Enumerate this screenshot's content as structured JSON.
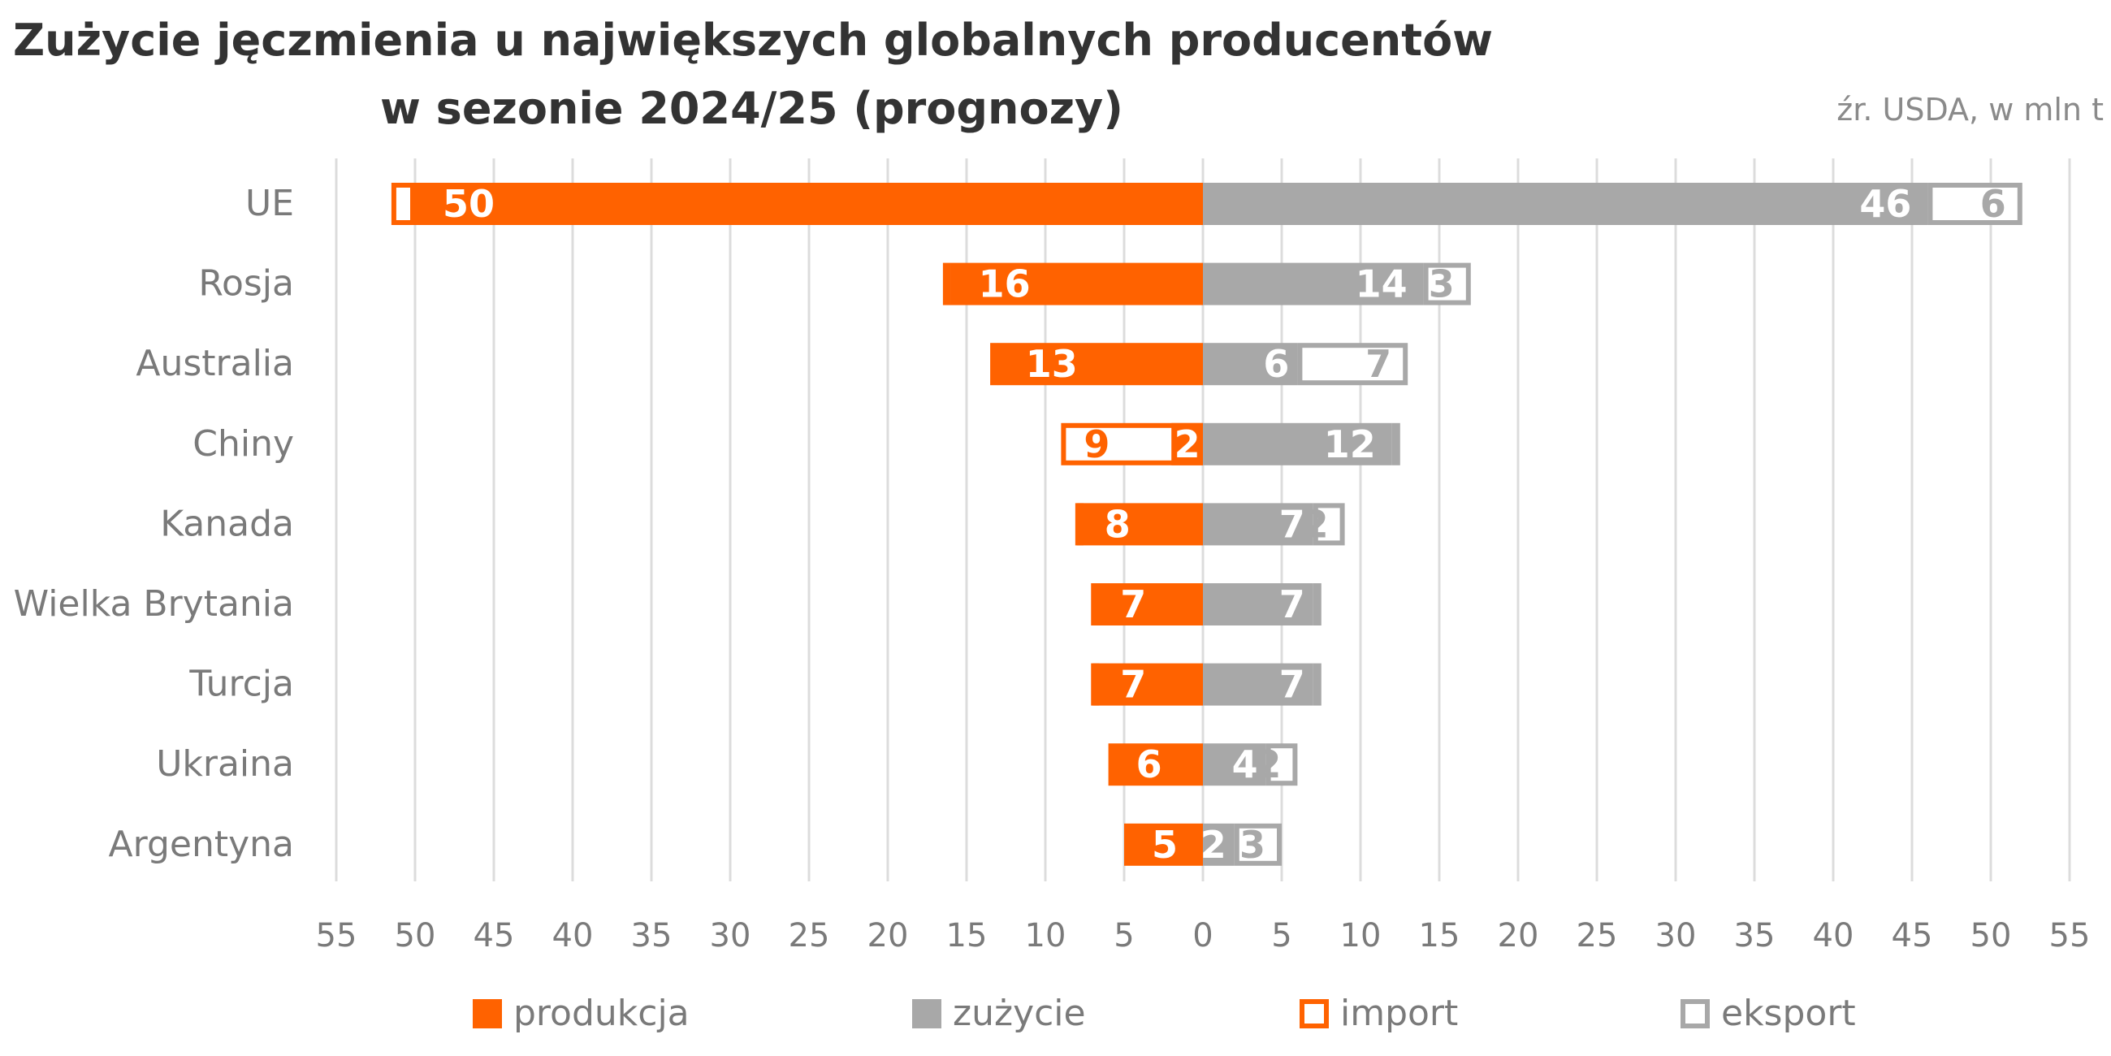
{
  "title_line1": "Zużycie jęczmienia u największych globalnych producentów",
  "title_line2": "w sezonie 2024/25 (prognozy)",
  "source": "źr. USDA, w mln t",
  "colors": {
    "production": "#ff6200",
    "consumption": "#a8a8a8",
    "grid": "#dcdcdc",
    "text": "#7a7a7a",
    "title": "#333333"
  },
  "chart_data": {
    "type": "bar",
    "orientation": "horizontal-diverging",
    "title": "Zużycie jęczmienia u największych globalnych producentów w sezonie 2024/25 (prognozy)",
    "unit": "mln t",
    "xlim": [
      -55,
      55
    ],
    "xticks": [
      -55,
      -50,
      -45,
      -40,
      -35,
      -30,
      -25,
      -20,
      -15,
      -10,
      -5,
      0,
      5,
      10,
      15,
      20,
      25,
      30,
      35,
      40,
      45,
      50,
      55
    ],
    "categories": [
      "UE",
      "Rosja",
      "Australia",
      "Chiny",
      "Kanada",
      "Wielka Brytania",
      "Turcja",
      "Ukraina",
      "Argentyna"
    ],
    "series": [
      {
        "name": "produkcja",
        "side": "left",
        "style": "filled",
        "values": [
          50,
          16,
          13,
          0,
          8,
          7,
          7,
          6,
          5
        ],
        "labels": [
          "50",
          "16",
          "13",
          "",
          "8",
          "7",
          "7",
          "6",
          "5"
        ]
      },
      {
        "name": "import",
        "side": "left",
        "style": "outline",
        "values": [
          1.5,
          0.5,
          0.5,
          9,
          0.1,
          0.1,
          0.1,
          0,
          0
        ],
        "labels": [
          "",
          "",
          "",
          "9",
          "",
          "",
          "",
          "",
          ""
        ]
      },
      {
        "name": "zużycie",
        "side": "right",
        "style": "filled",
        "values": [
          46,
          14,
          6,
          12,
          7,
          7,
          7,
          4,
          2
        ],
        "labels": [
          "46",
          "14",
          "6",
          "12",
          "7",
          "7",
          "7",
          "4",
          "2"
        ]
      },
      {
        "name": "eksport",
        "side": "right",
        "style": "outline",
        "values": [
          6,
          3,
          7,
          0.3,
          2,
          0.5,
          0.5,
          2,
          3
        ],
        "labels": [
          "6",
          "3",
          "7",
          "",
          "2",
          "",
          "",
          "2",
          "3"
        ]
      }
    ],
    "china_import_inner_label": "2",
    "legend": {
      "position": "bottom",
      "items": [
        "produkcja",
        "zużycie",
        "import",
        "eksport"
      ]
    }
  }
}
